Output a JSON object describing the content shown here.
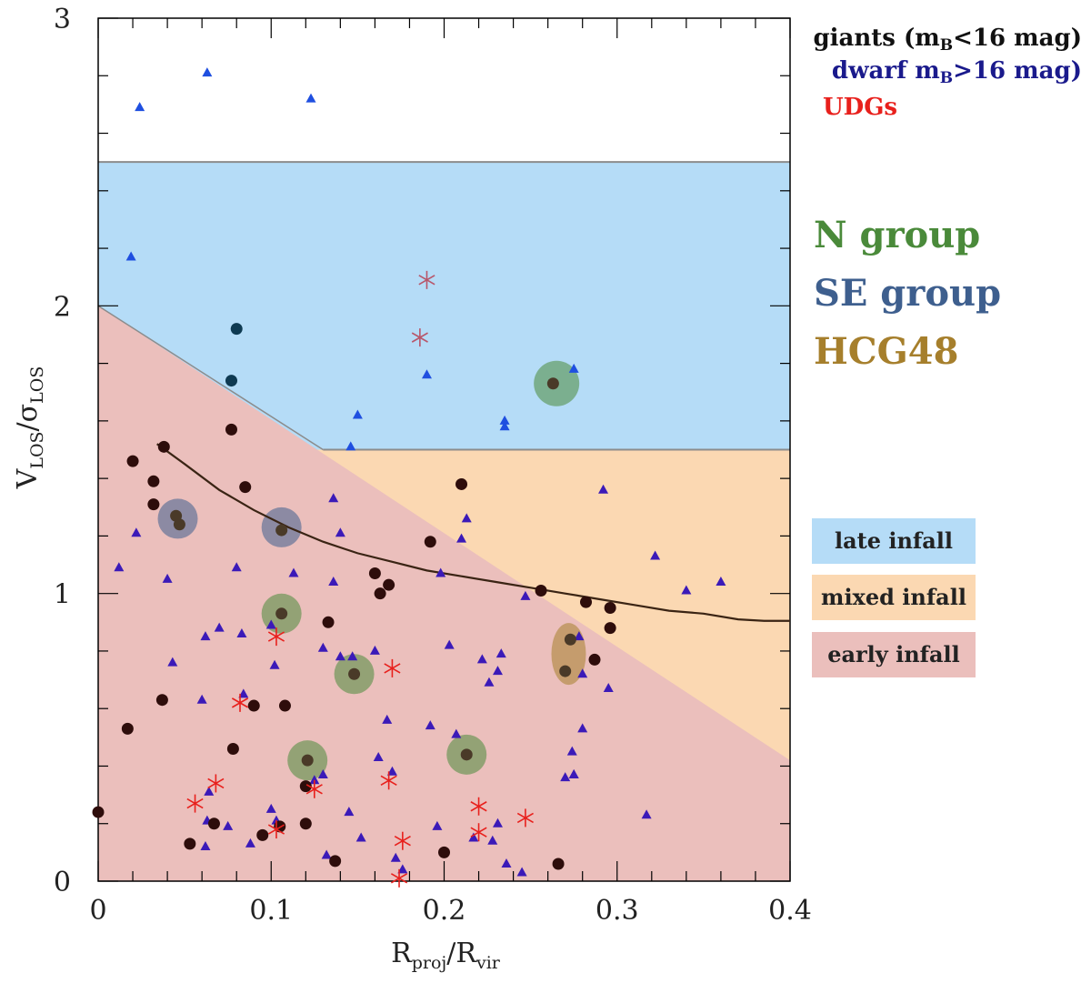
{
  "chart_data": {
    "type": "scatter",
    "xlabel": {
      "base": "R",
      "sub": "proj",
      "mid": "/R",
      "sub2": "vir"
    },
    "ylabel": {
      "base": "V",
      "sub": "LOS",
      "mid": "/σ",
      "sub2": "LOS"
    },
    "xlim": [
      0,
      0.4
    ],
    "ylim": [
      0,
      3
    ],
    "x_ticks": [
      "0",
      "0.1",
      "0.2",
      "0.3",
      "0.4"
    ],
    "y_ticks": [
      "0",
      "1",
      "2",
      "3"
    ],
    "legend": [
      {
        "pre": "giants (m",
        "sub": "B",
        "post": "<16 mag)",
        "color": "#111111"
      },
      {
        "pre": "dwarf m",
        "sub": "B",
        "post": ">16 mag)",
        "color": "#1a1a8c"
      },
      {
        "pre": "UDGs",
        "sub": "",
        "post": "",
        "color": "#e8201c"
      }
    ],
    "groups": [
      {
        "label": "N group",
        "color": "#4a8a3a"
      },
      {
        "label": "SE group",
        "color": "#3e5f8e"
      },
      {
        "label": "HCG48",
        "color": "#a67f2c"
      }
    ],
    "regions": [
      {
        "label": "late infall",
        "color": "#b5dcf7"
      },
      {
        "label": "mixed infall",
        "color": "#fbd8b2"
      },
      {
        "label": "early infall",
        "color": "#ebbfbc"
      }
    ],
    "region_bounds": {
      "late": {
        "x": [
          0,
          0.4
        ],
        "y": [
          1.5,
          2.5
        ]
      },
      "early_line": [
        [
          0,
          2.0
        ],
        [
          0.4,
          0.42
        ]
      ]
    },
    "curve": [
      [
        0.034,
        1.52
      ],
      [
        0.05,
        1.45
      ],
      [
        0.07,
        1.36
      ],
      [
        0.09,
        1.29
      ],
      [
        0.11,
        1.23
      ],
      [
        0.13,
        1.18
      ],
      [
        0.15,
        1.14
      ],
      [
        0.17,
        1.11
      ],
      [
        0.19,
        1.08
      ],
      [
        0.21,
        1.06
      ],
      [
        0.23,
        1.04
      ],
      [
        0.25,
        1.02
      ],
      [
        0.27,
        1.0
      ],
      [
        0.29,
        0.98
      ],
      [
        0.31,
        0.96
      ],
      [
        0.33,
        0.94
      ],
      [
        0.35,
        0.93
      ],
      [
        0.37,
        0.91
      ],
      [
        0.385,
        0.905
      ],
      [
        0.4,
        0.905
      ]
    ],
    "giants": [
      [
        0.0,
        0.24
      ],
      [
        0.08,
        1.92
      ],
      [
        0.077,
        1.74
      ],
      [
        0.02,
        1.46
      ],
      [
        0.038,
        1.51
      ],
      [
        0.032,
        1.39
      ],
      [
        0.032,
        1.31
      ],
      [
        0.077,
        1.57
      ],
      [
        0.085,
        1.37
      ],
      [
        0.045,
        1.27
      ],
      [
        0.047,
        1.24
      ],
      [
        0.106,
        1.22
      ],
      [
        0.192,
        1.18
      ],
      [
        0.21,
        1.38
      ],
      [
        0.16,
        1.07
      ],
      [
        0.163,
        1.0
      ],
      [
        0.168,
        1.03
      ],
      [
        0.133,
        0.9
      ],
      [
        0.106,
        0.93
      ],
      [
        0.037,
        0.63
      ],
      [
        0.017,
        0.53
      ],
      [
        0.09,
        0.61
      ],
      [
        0.108,
        0.61
      ],
      [
        0.078,
        0.46
      ],
      [
        0.148,
        0.72
      ],
      [
        0.121,
        0.42
      ],
      [
        0.12,
        0.33
      ],
      [
        0.053,
        0.13
      ],
      [
        0.067,
        0.2
      ],
      [
        0.095,
        0.16
      ],
      [
        0.105,
        0.19
      ],
      [
        0.12,
        0.2
      ],
      [
        0.137,
        0.07
      ],
      [
        0.2,
        0.1
      ],
      [
        0.213,
        0.44
      ],
      [
        0.263,
        1.73
      ],
      [
        0.256,
        1.01
      ],
      [
        0.282,
        0.97
      ],
      [
        0.296,
        0.95
      ],
      [
        0.296,
        0.88
      ],
      [
        0.273,
        0.84
      ],
      [
        0.27,
        0.73
      ],
      [
        0.287,
        0.77
      ],
      [
        0.266,
        0.06
      ]
    ],
    "dwarfs": [
      [
        0.024,
        2.69
      ],
      [
        0.063,
        2.81
      ],
      [
        0.123,
        2.72
      ],
      [
        0.019,
        2.17
      ],
      [
        0.19,
        1.76
      ],
      [
        0.15,
        1.62
      ],
      [
        0.146,
        1.51
      ],
      [
        0.235,
        1.6
      ],
      [
        0.235,
        1.58
      ],
      [
        0.275,
        1.78
      ],
      [
        0.022,
        1.21
      ],
      [
        0.012,
        1.09
      ],
      [
        0.04,
        1.05
      ],
      [
        0.08,
        1.09
      ],
      [
        0.113,
        1.07
      ],
      [
        0.136,
        1.33
      ],
      [
        0.14,
        1.21
      ],
      [
        0.136,
        1.04
      ],
      [
        0.213,
        1.26
      ],
      [
        0.21,
        1.19
      ],
      [
        0.198,
        1.07
      ],
      [
        0.292,
        1.36
      ],
      [
        0.322,
        1.13
      ],
      [
        0.34,
        1.01
      ],
      [
        0.36,
        1.04
      ],
      [
        0.043,
        0.76
      ],
      [
        0.06,
        0.63
      ],
      [
        0.062,
        0.85
      ],
      [
        0.07,
        0.88
      ],
      [
        0.083,
        0.86
      ],
      [
        0.1,
        0.89
      ],
      [
        0.102,
        0.75
      ],
      [
        0.13,
        0.81
      ],
      [
        0.14,
        0.78
      ],
      [
        0.16,
        0.8
      ],
      [
        0.147,
        0.78
      ],
      [
        0.203,
        0.82
      ],
      [
        0.222,
        0.77
      ],
      [
        0.231,
        0.73
      ],
      [
        0.233,
        0.79
      ],
      [
        0.247,
        0.99
      ],
      [
        0.226,
        0.69
      ],
      [
        0.167,
        0.56
      ],
      [
        0.192,
        0.54
      ],
      [
        0.207,
        0.51
      ],
      [
        0.278,
        0.85
      ],
      [
        0.28,
        0.72
      ],
      [
        0.295,
        0.67
      ],
      [
        0.28,
        0.53
      ],
      [
        0.274,
        0.45
      ],
      [
        0.275,
        0.37
      ],
      [
        0.27,
        0.36
      ],
      [
        0.275,
        0.37
      ],
      [
        0.084,
        0.65
      ],
      [
        0.162,
        0.43
      ],
      [
        0.17,
        0.38
      ],
      [
        0.125,
        0.35
      ],
      [
        0.13,
        0.37
      ],
      [
        0.064,
        0.31
      ],
      [
        0.1,
        0.25
      ],
      [
        0.103,
        0.21
      ],
      [
        0.145,
        0.24
      ],
      [
        0.152,
        0.15
      ],
      [
        0.063,
        0.21
      ],
      [
        0.062,
        0.12
      ],
      [
        0.075,
        0.19
      ],
      [
        0.088,
        0.13
      ],
      [
        0.132,
        0.09
      ],
      [
        0.172,
        0.08
      ],
      [
        0.176,
        0.04
      ],
      [
        0.196,
        0.19
      ],
      [
        0.217,
        0.15
      ],
      [
        0.228,
        0.14
      ],
      [
        0.231,
        0.2
      ],
      [
        0.236,
        0.06
      ],
      [
        0.245,
        0.03
      ],
      [
        0.317,
        0.23
      ]
    ],
    "udgs": [
      [
        0.19,
        2.09
      ],
      [
        0.186,
        1.89
      ],
      [
        0.103,
        0.85
      ],
      [
        0.17,
        0.74
      ],
      [
        0.082,
        0.62
      ],
      [
        0.168,
        0.35
      ],
      [
        0.068,
        0.34
      ],
      [
        0.056,
        0.27
      ],
      [
        0.125,
        0.32
      ],
      [
        0.103,
        0.18
      ],
      [
        0.22,
        0.26
      ],
      [
        0.22,
        0.17
      ],
      [
        0.247,
        0.22
      ],
      [
        0.176,
        0.14
      ],
      [
        0.174,
        0.01
      ]
    ],
    "highlights": [
      {
        "group": "SE group",
        "x": 0.046,
        "y": 1.26,
        "rx": 22,
        "ry": 22
      },
      {
        "group": "SE group",
        "x": 0.106,
        "y": 1.23,
        "rx": 22,
        "ry": 22
      },
      {
        "group": "N group",
        "x": 0.106,
        "y": 0.93,
        "rx": 22,
        "ry": 22
      },
      {
        "group": "N group",
        "x": 0.148,
        "y": 0.72,
        "rx": 22,
        "ry": 22
      },
      {
        "group": "N group",
        "x": 0.121,
        "y": 0.42,
        "rx": 22,
        "ry": 22
      },
      {
        "group": "N group",
        "x": 0.213,
        "y": 0.44,
        "rx": 22,
        "ry": 22
      },
      {
        "group": "N group",
        "x": 0.265,
        "y": 1.73,
        "rx": 25,
        "ry": 25
      },
      {
        "group": "HCG48",
        "x": 0.272,
        "y": 0.79,
        "rx": 19,
        "ry": 34
      }
    ]
  }
}
